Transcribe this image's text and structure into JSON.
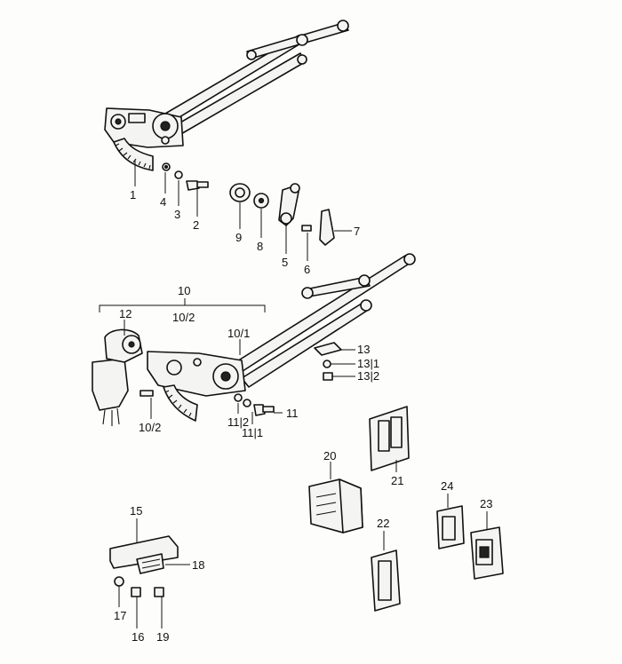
{
  "diagram": {
    "callouts": [
      {
        "id": "c1",
        "text": "1"
      },
      {
        "id": "c2",
        "text": "2"
      },
      {
        "id": "c3",
        "text": "3"
      },
      {
        "id": "c4",
        "text": "4"
      },
      {
        "id": "c5",
        "text": "5"
      },
      {
        "id": "c6",
        "text": "6"
      },
      {
        "id": "c7",
        "text": "7"
      },
      {
        "id": "c8",
        "text": "8"
      },
      {
        "id": "c9",
        "text": "9"
      },
      {
        "id": "c10",
        "text": "10"
      },
      {
        "id": "c10_2a",
        "text": "10/2"
      },
      {
        "id": "c12",
        "text": "12"
      },
      {
        "id": "c10_1",
        "text": "10/1"
      },
      {
        "id": "c13",
        "text": "13"
      },
      {
        "id": "c13_1",
        "text": "13|1"
      },
      {
        "id": "c13_2",
        "text": "13|2"
      },
      {
        "id": "c10_2b",
        "text": "10/2"
      },
      {
        "id": "c11_2",
        "text": "11|2"
      },
      {
        "id": "c11_1",
        "text": "11|1"
      },
      {
        "id": "c11",
        "text": "11"
      },
      {
        "id": "c20",
        "text": "20"
      },
      {
        "id": "c21",
        "text": "21"
      },
      {
        "id": "c24",
        "text": "24"
      },
      {
        "id": "c23",
        "text": "23"
      },
      {
        "id": "c22",
        "text": "22"
      },
      {
        "id": "c15",
        "text": "15"
      },
      {
        "id": "c18",
        "text": "18"
      },
      {
        "id": "c17",
        "text": "17"
      },
      {
        "id": "c16",
        "text": "16"
      },
      {
        "id": "c19",
        "text": "19"
      }
    ]
  }
}
